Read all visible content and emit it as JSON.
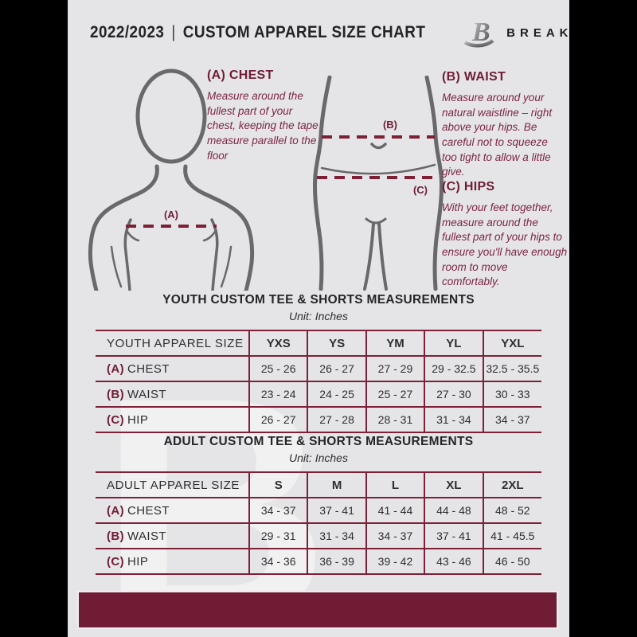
{
  "colors": {
    "maroon": "#701c34",
    "maroon-line": "#7d2038",
    "maroon-text": "#7c2444",
    "ink": "#2e2e30",
    "figure": "#69696b",
    "page": "#e5e5e7"
  },
  "header": {
    "year": "2022/2023",
    "divider": "|",
    "title": "CUSTOM APPAREL SIZE CHART",
    "brand": "BREAKAWAY"
  },
  "watermark": {
    "letter": "B"
  },
  "guide": {
    "chest": {
      "heading": "(A) CHEST",
      "marker": "(A)",
      "body": "Measure around the fullest part of your chest, keeping the tape measure parallel to the floor"
    },
    "waist": {
      "heading": "(B) WAIST",
      "marker": "(B)",
      "body": "Measure around your natural waistline – right above your hips. Be careful not to squeeze too tight to allow a little give."
    },
    "hips": {
      "heading": "(C) HIPS",
      "marker": "(C)",
      "body": "With your feet together, measure around the fullest part of your hips to ensure you'll have enough room to move comfortably."
    }
  },
  "youth": {
    "title": "YOUTH CUSTOM TEE & SHORTS MEASUREMENTS",
    "unit": "Unit: Inches",
    "size_label": "YOUTH APPAREL SIZE",
    "columns": [
      "YXS",
      "YS",
      "YM",
      "YL",
      "YXL"
    ],
    "rows": [
      {
        "prefix": "(A)",
        "label": "CHEST",
        "values": [
          "25 - 26",
          "26 - 27",
          "27 - 29",
          "29 - 32.5",
          "32.5 - 35.5"
        ]
      },
      {
        "prefix": "(B)",
        "label": "WAIST",
        "values": [
          "23 - 24",
          "24 - 25",
          "25 - 27",
          "27 - 30",
          "30 - 33"
        ]
      },
      {
        "prefix": "(C)",
        "label": "HIP",
        "values": [
          "26 - 27",
          "27 - 28",
          "28 - 31",
          "31 - 34",
          "34 - 37"
        ]
      }
    ]
  },
  "adult": {
    "title": "ADULT CUSTOM TEE & SHORTS MEASUREMENTS",
    "unit": "Unit: Inches",
    "size_label": "ADULT APPAREL SIZE",
    "columns": [
      "S",
      "M",
      "L",
      "XL",
      "2XL"
    ],
    "rows": [
      {
        "prefix": "(A)",
        "label": "CHEST",
        "values": [
          "34 - 37",
          "37 - 41",
          "41 - 44",
          "44 - 48",
          "48 - 52"
        ]
      },
      {
        "prefix": "(B)",
        "label": "WAIST",
        "values": [
          "29 - 31",
          "31 - 34",
          "34 - 37",
          "37 - 41",
          "41 - 45.5"
        ]
      },
      {
        "prefix": "(C)",
        "label": "HIP",
        "values": [
          "34 - 36",
          "36 - 39",
          "39 - 42",
          "43 - 46",
          "46 - 50"
        ]
      }
    ]
  }
}
